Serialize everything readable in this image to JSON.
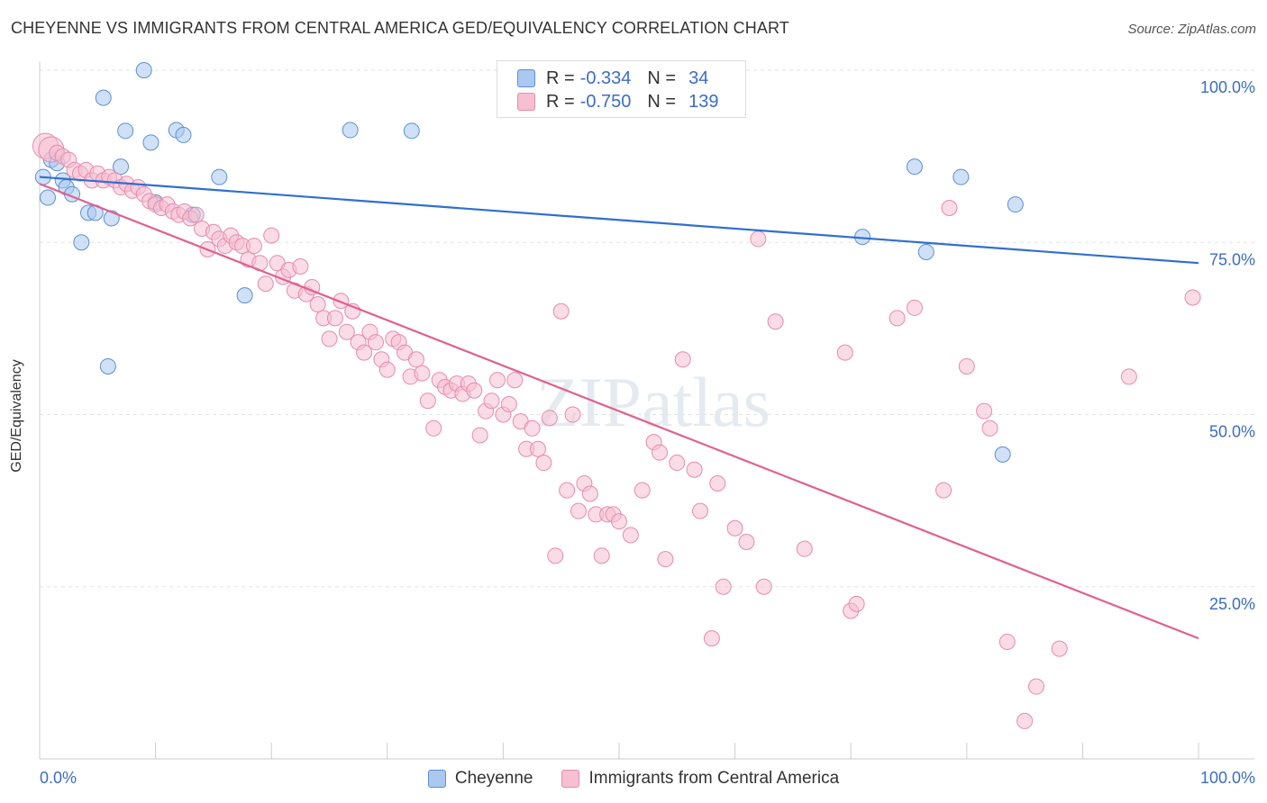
{
  "title": "CHEYENNE VS IMMIGRANTS FROM CENTRAL AMERICA GED/EQUIVALENCY CORRELATION CHART",
  "source": "Source: ZipAtlas.com",
  "watermark": "ZIPatlas",
  "legend_top": {
    "r_label": "R =",
    "n_label": "N =",
    "rows": [
      {
        "r": "-0.334",
        "n": "34"
      },
      {
        "r": "-0.750",
        "n": "139"
      }
    ]
  },
  "colors": {
    "blue_fill": "#aac8f0",
    "blue_stroke": "#5b8fd6",
    "blue_line": "#2f6fcf",
    "pink_fill": "#f6bfd2",
    "pink_stroke": "#e88aac",
    "pink_line": "#e0608f",
    "tick_label": "#3b6cc7",
    "grid": "#e2e2e2"
  },
  "chart_data": {
    "type": "scatter",
    "title": "CHEYENNE VS IMMIGRANTS FROM CENTRAL AMERICA GED/EQUIVALENCY CORRELATION CHART",
    "xlabel": "",
    "ylabel": "GED/Equivalency",
    "xlim": [
      0,
      100
    ],
    "ylim": [
      0,
      100
    ],
    "x_tick_labels": [
      "0.0%",
      "100.0%"
    ],
    "y_ticks": [
      {
        "value": 25,
        "label": "25.0%"
      },
      {
        "value": 50,
        "label": "50.0%"
      },
      {
        "value": 75,
        "label": "75.0%"
      },
      {
        "value": 100,
        "label": "100.0%"
      }
    ],
    "grid": true,
    "legend_position": "bottom",
    "series": [
      {
        "name": "Cheyenne",
        "color": "#aac8f0",
        "r": -0.334,
        "n": 34,
        "trend": {
          "x": [
            0,
            100
          ],
          "y": [
            84.5,
            72.0
          ]
        },
        "points": [
          [
            0.3,
            84.5
          ],
          [
            0.7,
            81.5
          ],
          [
            1.0,
            87.0
          ],
          [
            1.5,
            86.5
          ],
          [
            2.0,
            84.0
          ],
          [
            2.3,
            83.0
          ],
          [
            2.8,
            82.0
          ],
          [
            3.6,
            75.0
          ],
          [
            4.2,
            79.3
          ],
          [
            4.8,
            79.3
          ],
          [
            5.5,
            96.0
          ],
          [
            5.9,
            57.0
          ],
          [
            6.2,
            78.5
          ],
          [
            7.0,
            86.0
          ],
          [
            7.4,
            91.2
          ],
          [
            9.0,
            100.0
          ],
          [
            9.6,
            89.5
          ],
          [
            10.0,
            80.8
          ],
          [
            11.8,
            91.3
          ],
          [
            12.4,
            90.6
          ],
          [
            13.2,
            79.0
          ],
          [
            15.5,
            84.5
          ],
          [
            17.7,
            67.3
          ],
          [
            26.8,
            91.3
          ],
          [
            32.1,
            91.2
          ],
          [
            71.0,
            75.8
          ],
          [
            75.5,
            86.0
          ],
          [
            76.5,
            73.6
          ],
          [
            79.5,
            84.5
          ],
          [
            83.1,
            44.2
          ],
          [
            84.2,
            80.5
          ]
        ]
      },
      {
        "name": "Immigrants from Central America",
        "color": "#f6bfd2",
        "r": -0.75,
        "n": 139,
        "trend": {
          "x": [
            0,
            100
          ],
          "y": [
            83.5,
            17.5
          ]
        },
        "points": [
          [
            0.5,
            89.0
          ],
          [
            1.0,
            88.5
          ],
          [
            1.5,
            88.0
          ],
          [
            2.0,
            87.5
          ],
          [
            2.5,
            87.0
          ],
          [
            3.0,
            85.5
          ],
          [
            3.5,
            85.0
          ],
          [
            4.0,
            85.5
          ],
          [
            4.5,
            84.0
          ],
          [
            5.0,
            85.0
          ],
          [
            5.5,
            84.0
          ],
          [
            6.0,
            84.5
          ],
          [
            6.5,
            84.0
          ],
          [
            7.0,
            83.0
          ],
          [
            7.5,
            83.5
          ],
          [
            8.0,
            82.5
          ],
          [
            8.5,
            83.0
          ],
          [
            9.0,
            82.0
          ],
          [
            9.5,
            81.0
          ],
          [
            10.0,
            80.5
          ],
          [
            10.5,
            80.0
          ],
          [
            11.0,
            80.5
          ],
          [
            11.5,
            79.5
          ],
          [
            12.0,
            79.0
          ],
          [
            12.5,
            79.5
          ],
          [
            13.0,
            78.5
          ],
          [
            13.5,
            79.0
          ],
          [
            14.0,
            77.0
          ],
          [
            14.5,
            74.0
          ],
          [
            15.0,
            76.5
          ],
          [
            15.5,
            75.5
          ],
          [
            16.0,
            74.5
          ],
          [
            16.5,
            76.0
          ],
          [
            17.0,
            75.0
          ],
          [
            17.5,
            74.5
          ],
          [
            18.0,
            72.5
          ],
          [
            18.5,
            74.5
          ],
          [
            19.0,
            72.0
          ],
          [
            19.5,
            69.0
          ],
          [
            20.0,
            76.0
          ],
          [
            20.5,
            72.0
          ],
          [
            21.0,
            70.0
          ],
          [
            21.5,
            71.0
          ],
          [
            22.0,
            68.0
          ],
          [
            22.5,
            71.5
          ],
          [
            23.0,
            67.5
          ],
          [
            23.5,
            68.5
          ],
          [
            24.0,
            66.0
          ],
          [
            24.5,
            64.0
          ],
          [
            25.0,
            61.0
          ],
          [
            25.5,
            64.0
          ],
          [
            26.0,
            66.5
          ],
          [
            26.5,
            62.0
          ],
          [
            27.0,
            65.0
          ],
          [
            27.5,
            60.5
          ],
          [
            28.0,
            59.0
          ],
          [
            28.5,
            62.0
          ],
          [
            29.0,
            60.5
          ],
          [
            29.5,
            58.0
          ],
          [
            30.0,
            56.5
          ],
          [
            30.5,
            61.0
          ],
          [
            31.0,
            60.5
          ],
          [
            31.5,
            59.0
          ],
          [
            32.0,
            55.5
          ],
          [
            32.5,
            58.0
          ],
          [
            33.0,
            56.0
          ],
          [
            33.5,
            52.0
          ],
          [
            34.0,
            48.0
          ],
          [
            34.5,
            55.0
          ],
          [
            35.0,
            54.0
          ],
          [
            35.5,
            53.5
          ],
          [
            36.0,
            54.5
          ],
          [
            36.5,
            53.0
          ],
          [
            37.0,
            54.5
          ],
          [
            37.5,
            53.5
          ],
          [
            38.0,
            47.0
          ],
          [
            38.5,
            50.5
          ],
          [
            39.0,
            52.0
          ],
          [
            39.5,
            55.0
          ],
          [
            40.0,
            50.0
          ],
          [
            40.5,
            51.5
          ],
          [
            41.0,
            55.0
          ],
          [
            41.5,
            49.0
          ],
          [
            42.0,
            45.0
          ],
          [
            42.5,
            48.0
          ],
          [
            43.0,
            45.0
          ],
          [
            43.5,
            43.0
          ],
          [
            44.0,
            49.5
          ],
          [
            44.5,
            29.5
          ],
          [
            45.0,
            65.0
          ],
          [
            45.5,
            39.0
          ],
          [
            46.0,
            50.0
          ],
          [
            46.5,
            36.0
          ],
          [
            47.0,
            40.0
          ],
          [
            47.5,
            38.5
          ],
          [
            48.0,
            35.5
          ],
          [
            48.5,
            29.5
          ],
          [
            49.0,
            35.5
          ],
          [
            49.5,
            35.5
          ],
          [
            50.0,
            34.5
          ],
          [
            51.0,
            32.5
          ],
          [
            52.0,
            39.0
          ],
          [
            53.0,
            46.0
          ],
          [
            53.5,
            44.5
          ],
          [
            54.0,
            29.0
          ],
          [
            55.0,
            43.0
          ],
          [
            55.5,
            58.0
          ],
          [
            56.5,
            42.0
          ],
          [
            57.0,
            36.0
          ],
          [
            58.0,
            17.5
          ],
          [
            58.5,
            40.0
          ],
          [
            59.0,
            25.0
          ],
          [
            60.0,
            33.5
          ],
          [
            61.0,
            31.5
          ],
          [
            62.0,
            75.5
          ],
          [
            62.5,
            25.0
          ],
          [
            63.5,
            63.5
          ],
          [
            66.0,
            30.5
          ],
          [
            69.5,
            59.0
          ],
          [
            70.0,
            21.5
          ],
          [
            70.5,
            22.5
          ],
          [
            74.0,
            64.0
          ],
          [
            75.5,
            65.5
          ],
          [
            78.0,
            39.0
          ],
          [
            78.5,
            80.0
          ],
          [
            80.0,
            57.0
          ],
          [
            81.5,
            50.5
          ],
          [
            82.0,
            48.0
          ],
          [
            83.5,
            17.0
          ],
          [
            85.0,
            5.5
          ],
          [
            86.0,
            10.5
          ],
          [
            88.0,
            16.0
          ],
          [
            94.0,
            55.5
          ],
          [
            99.5,
            67.0
          ]
        ]
      }
    ]
  }
}
